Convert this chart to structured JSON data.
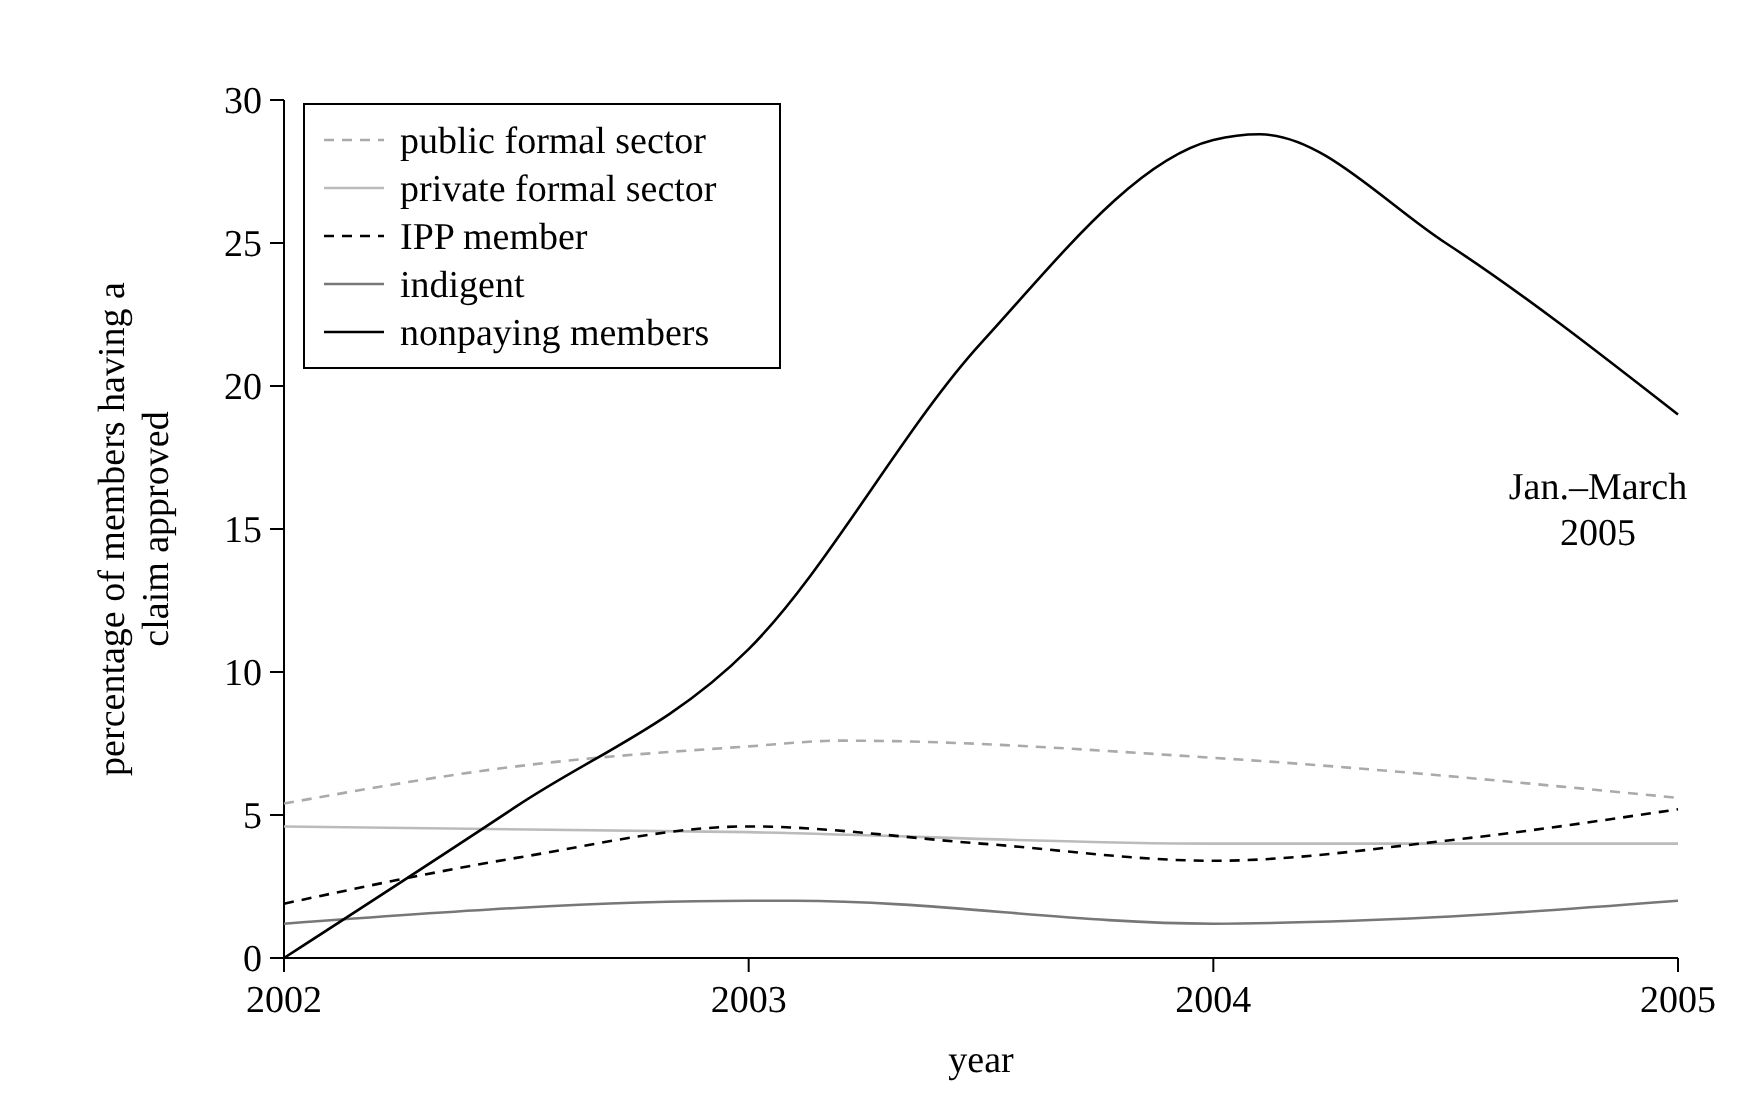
{
  "chart_data": {
    "type": "line",
    "xlabel": "year",
    "ylabel": "percentage of members having a claim approved",
    "xlim": [
      2002,
      2005
    ],
    "xticks": [
      2002,
      2003,
      2004,
      2005
    ],
    "ylim": [
      0,
      30
    ],
    "yticks": [
      0,
      5,
      10,
      15,
      20,
      25,
      30
    ],
    "legend": "top left",
    "grid": false,
    "series": [
      {
        "name": "public formal sector",
        "color": "#aaaaaa",
        "line_style": "dashed",
        "x": [
          2002,
          2002.5,
          2003,
          2003.2,
          2004,
          2005
        ],
        "values": [
          5.4,
          6.7,
          7.4,
          7.6,
          7.0,
          5.6
        ]
      },
      {
        "name": "private formal sector",
        "color": "#bbbbbb",
        "line_style": "solid",
        "x": [
          2002,
          2003,
          2004,
          2005
        ],
        "values": [
          4.6,
          4.4,
          4.0,
          4.0
        ]
      },
      {
        "name": "IPP member",
        "color": "#000000",
        "line_style": "dashed",
        "x": [
          2002,
          2002.5,
          2003,
          2003.5,
          2004,
          2004.5,
          2005
        ],
        "values": [
          1.9,
          3.5,
          4.6,
          4.0,
          3.4,
          4.1,
          5.2
        ]
      },
      {
        "name": "indigent",
        "color": "#777777",
        "line_style": "solid",
        "x": [
          2002,
          2003,
          2003.1,
          2004,
          2004.3,
          2005
        ],
        "values": [
          1.2,
          2.0,
          2.0,
          1.2,
          1.3,
          2.0
        ]
      },
      {
        "name": "nonpaying members",
        "color": "#000000",
        "line_style": "solid",
        "x": [
          2002,
          2002.5,
          2003,
          2003.5,
          2004,
          2004.1,
          2004.5,
          2005
        ],
        "values": [
          0,
          5.3,
          10.8,
          21.5,
          28.6,
          28.8,
          25,
          19
        ]
      }
    ],
    "annotations": [
      {
        "text": "Jan.–March 2005",
        "x": 2005,
        "y": 19
      }
    ]
  }
}
